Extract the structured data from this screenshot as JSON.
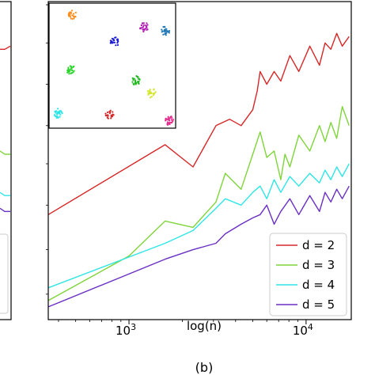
{
  "chart_data": {
    "type": "line",
    "xlabel": "log(n)",
    "x_scale": "log",
    "xlim": [
      350,
      18000
    ],
    "ylim": [
      0,
      1
    ],
    "x_ticks": [
      1000,
      10000
    ],
    "x_tick_labels": [
      {
        "base": "10",
        "exp": "3"
      },
      {
        "base": "10",
        "exp": "4"
      }
    ],
    "series": [
      {
        "name": "d = 2",
        "color": "#d62728",
        "x": [
          350,
          1600,
          2300,
          3100,
          3700,
          4300,
          5000,
          5300,
          5500,
          6000,
          6600,
          7200,
          8100,
          9100,
          10500,
          11900,
          12800,
          13800,
          14900,
          16000,
          17500
        ],
        "y": [
          0.33,
          0.55,
          0.48,
          0.61,
          0.63,
          0.61,
          0.66,
          0.72,
          0.78,
          0.74,
          0.78,
          0.75,
          0.83,
          0.78,
          0.86,
          0.8,
          0.87,
          0.85,
          0.9,
          0.86,
          0.89
        ]
      },
      {
        "name": "d = 3",
        "color": "#7fd43a",
        "x": [
          350,
          1000,
          1600,
          2300,
          3100,
          3500,
          4300,
          5000,
          5500,
          6000,
          6600,
          7200,
          7600,
          8100,
          9100,
          10500,
          11900,
          12800,
          13800,
          14900,
          16000,
          17500
        ],
        "y": [
          0.06,
          0.2,
          0.31,
          0.29,
          0.37,
          0.46,
          0.41,
          0.52,
          0.59,
          0.51,
          0.53,
          0.44,
          0.52,
          0.48,
          0.58,
          0.53,
          0.61,
          0.56,
          0.62,
          0.57,
          0.67,
          0.61
        ]
      },
      {
        "name": "d = 4",
        "color": "#2fe5e5",
        "x": [
          350,
          1600,
          2300,
          3100,
          3500,
          4300,
          5000,
          5500,
          6000,
          6600,
          7200,
          8100,
          9100,
          10500,
          11900,
          12800,
          13800,
          14900,
          16000,
          17500
        ],
        "y": [
          0.1,
          0.24,
          0.28,
          0.35,
          0.38,
          0.36,
          0.4,
          0.42,
          0.38,
          0.44,
          0.4,
          0.45,
          0.42,
          0.46,
          0.43,
          0.47,
          0.44,
          0.48,
          0.45,
          0.49
        ]
      },
      {
        "name": "d = 5",
        "color": "#6a2fc4",
        "x": [
          350,
          1600,
          2300,
          3100,
          3500,
          4300,
          5000,
          5500,
          6000,
          6600,
          7200,
          8100,
          9100,
          10500,
          11900,
          12800,
          13800,
          14900,
          16000,
          17500
        ],
        "y": [
          0.04,
          0.19,
          0.22,
          0.24,
          0.27,
          0.3,
          0.32,
          0.33,
          0.36,
          0.3,
          0.34,
          0.38,
          0.33,
          0.39,
          0.34,
          0.4,
          0.37,
          0.41,
          0.38,
          0.42
        ]
      }
    ],
    "legend": {
      "location": "lower-right"
    },
    "grid": false,
    "inset": {
      "type": "scatter-clusters",
      "clusters": [
        {
          "x": 0.18,
          "y": 0.91,
          "color": "#ff8c1a"
        },
        {
          "x": 0.75,
          "y": 0.81,
          "color": "#b31ab3"
        },
        {
          "x": 0.92,
          "y": 0.78,
          "color": "#1f77b4"
        },
        {
          "x": 0.52,
          "y": 0.69,
          "color": "#1a1ad6"
        },
        {
          "x": 0.17,
          "y": 0.47,
          "color": "#2ad62a"
        },
        {
          "x": 0.69,
          "y": 0.38,
          "color": "#1fb81f"
        },
        {
          "x": 0.81,
          "y": 0.28,
          "color": "#d4e62a"
        },
        {
          "x": 0.48,
          "y": 0.11,
          "color": "#d62728"
        },
        {
          "x": 0.07,
          "y": 0.12,
          "color": "#2fe5e5"
        },
        {
          "x": 0.95,
          "y": 0.06,
          "color": "#e62a8c"
        }
      ]
    },
    "left_panel_partial": {
      "series": [
        {
          "color": "#d62728",
          "y": [
            0.85,
            0.86
          ]
        },
        {
          "color": "#7fd43a",
          "y": [
            0.53,
            0.52
          ]
        },
        {
          "color": "#2fe5e5",
          "y": [
            0.4,
            0.39
          ]
        },
        {
          "color": "#6a2fc4",
          "y": [
            0.35,
            0.34
          ]
        }
      ]
    }
  },
  "caption": "(b)"
}
